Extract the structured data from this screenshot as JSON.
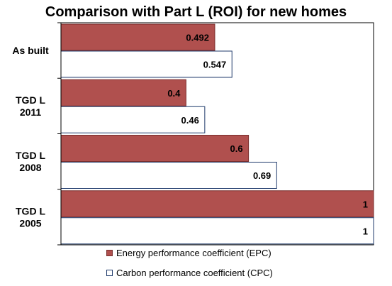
{
  "chart_data": {
    "type": "bar",
    "orientation": "horizontal",
    "title": "Comparison with Part L (ROI) for new homes",
    "categories": [
      "As built",
      "TGD L 2011",
      "TGD L 2008",
      "TGD L 2005"
    ],
    "category_lines": [
      [
        "As built"
      ],
      [
        "TGD L",
        "2011"
      ],
      [
        "TGD L",
        "2008"
      ],
      [
        "TGD L",
        "2005"
      ]
    ],
    "series": [
      {
        "name": "Energy performance coefficient (EPC)",
        "values": [
          0.492,
          0.4,
          0.6,
          1
        ],
        "labels": [
          "0.492",
          "0.4",
          "0.6",
          "1"
        ],
        "color": "#b0504e"
      },
      {
        "name": "Carbon performance coefficient (CPC)",
        "values": [
          0.547,
          0.46,
          0.69,
          1
        ],
        "labels": [
          "0.547",
          "0.46",
          "0.69",
          "1"
        ],
        "color": "#ffffff"
      }
    ],
    "xlim": [
      0,
      1
    ],
    "grid": false,
    "legend_position": "bottom"
  },
  "colors": {
    "epc_fill": "#b0504e",
    "cpc_fill": "#ffffff",
    "cpc_border": "#1f3a6b",
    "frame": "#000000"
  }
}
